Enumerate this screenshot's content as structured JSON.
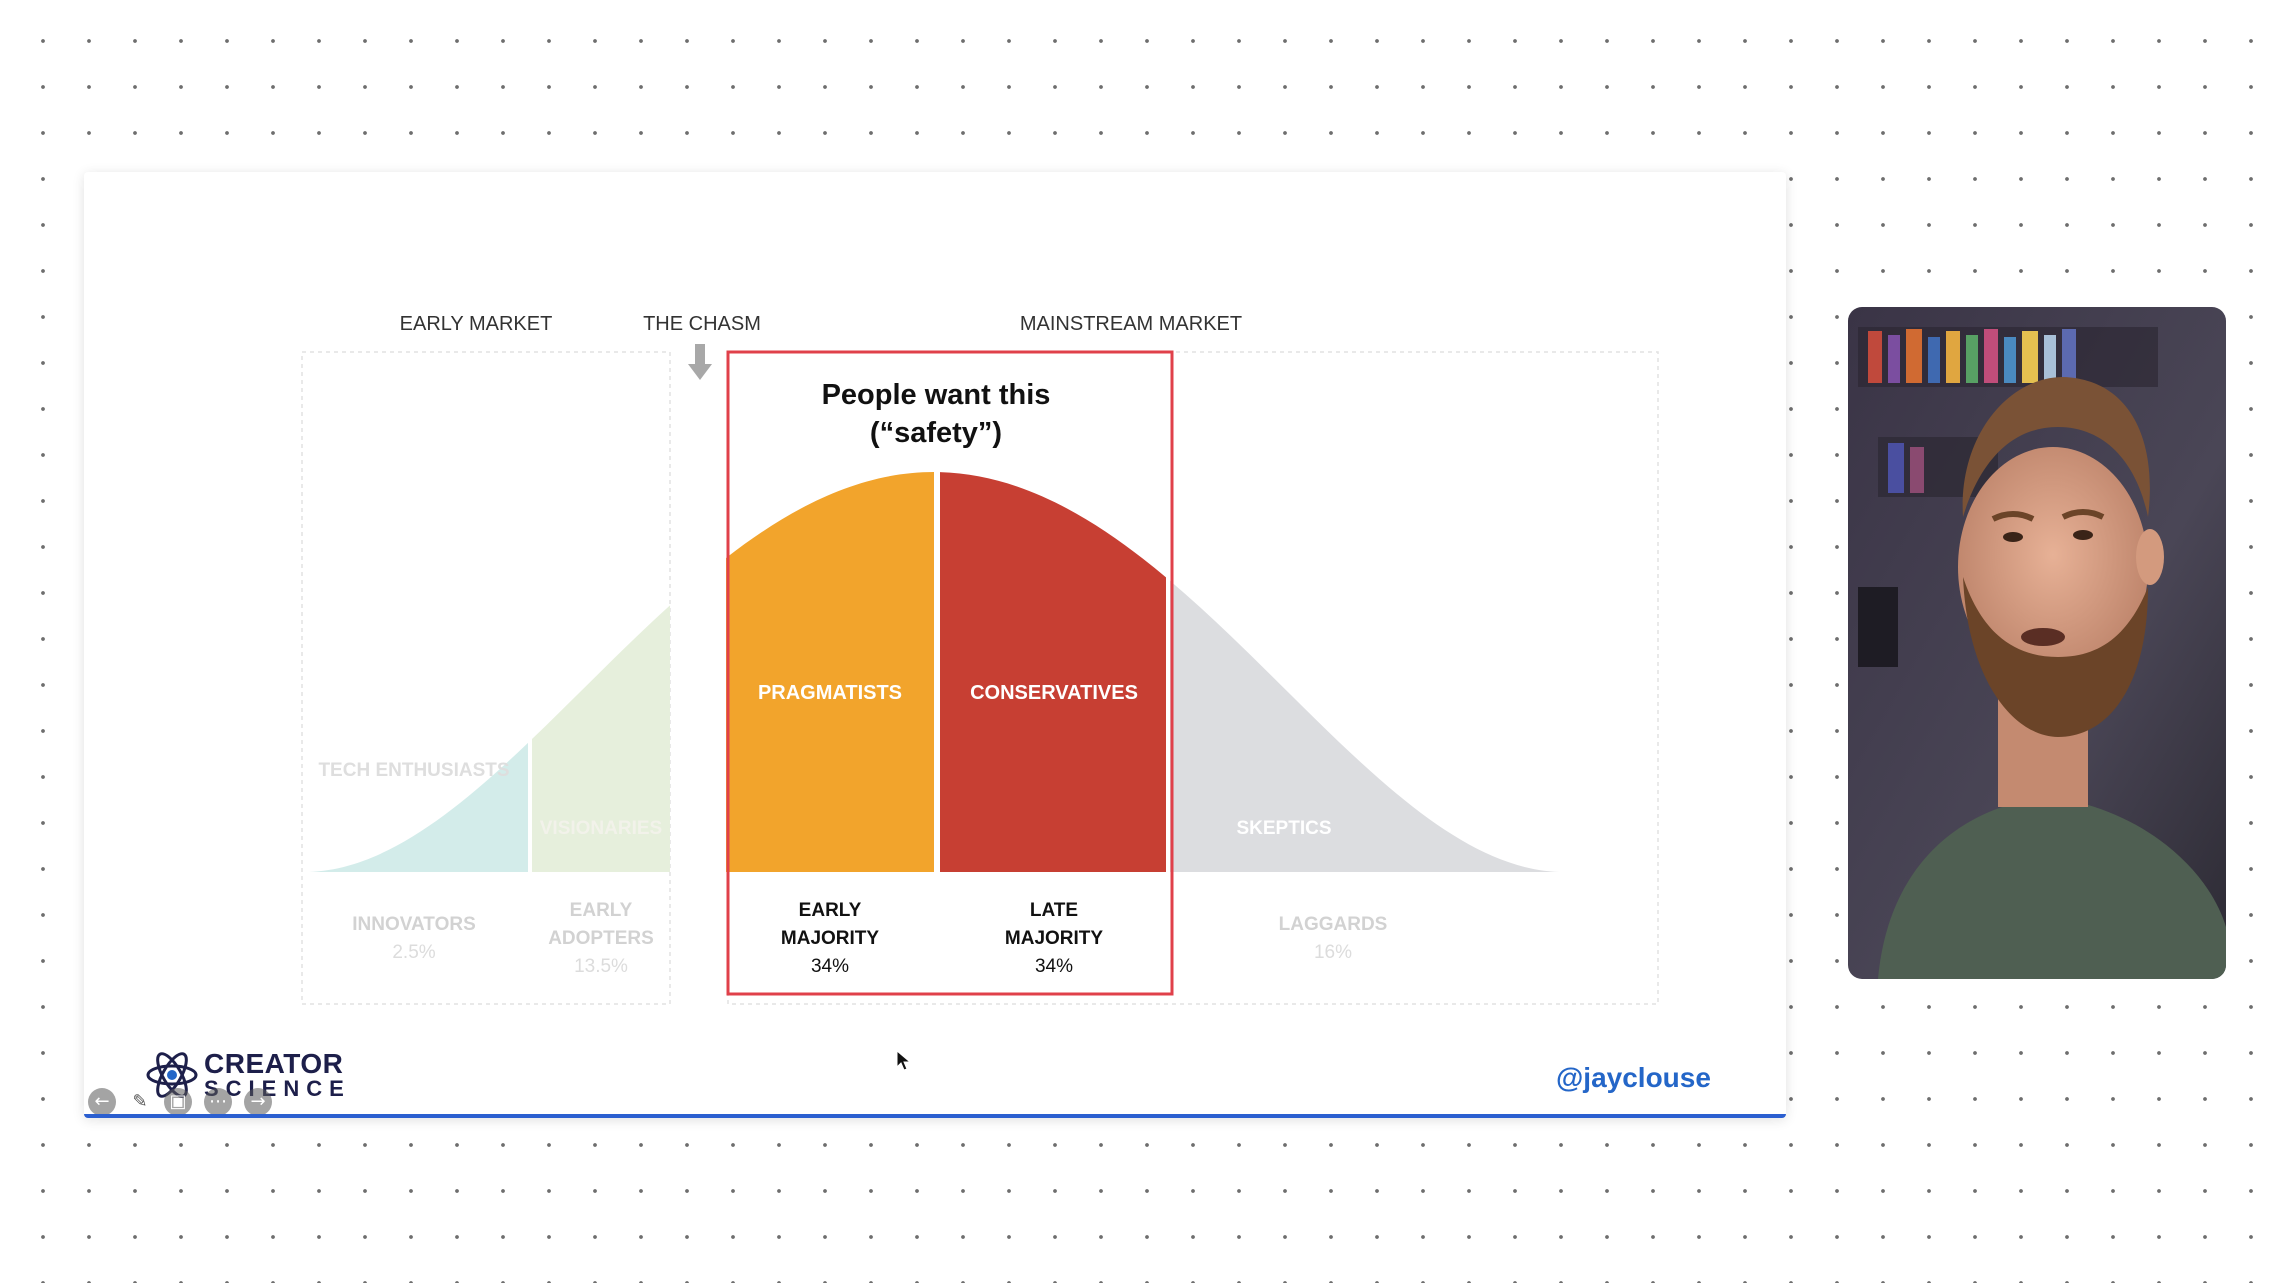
{
  "diagram": {
    "header_labels": {
      "early_market": "EARLY MARKET",
      "chasm": "THE CHASM",
      "mainstream_market": "MAINSTREAM MARKET"
    },
    "callout": {
      "line1": "People want this",
      "line2": "(“safety”)",
      "border_color": "#e0404a"
    },
    "segments": [
      {
        "curve_label": "TECH ENTHUSIASTS",
        "bottom_line1": "INNOVATORS",
        "bottom_line2": "",
        "percent": "2.5%",
        "color": "#d3ecea",
        "faded": true
      },
      {
        "curve_label": "VISIONARIES",
        "bottom_line1": "EARLY",
        "bottom_line2": "ADOPTERS",
        "percent": "13.5%",
        "color": "#e6efdc",
        "faded": true
      },
      {
        "curve_label": "PRAGMATISTS",
        "bottom_line1": "EARLY",
        "bottom_line2": "MAJORITY",
        "percent": "34%",
        "color": "#f2a42c",
        "faded": false
      },
      {
        "curve_label": "CONSERVATIVES",
        "bottom_line1": "LATE",
        "bottom_line2": "MAJORITY",
        "percent": "34%",
        "color": "#c73f33",
        "faded": false
      },
      {
        "curve_label": "SKEPTICS",
        "bottom_line1": "LAGGARDS",
        "bottom_line2": "",
        "percent": "16%",
        "color": "#dcdde0",
        "faded": true
      }
    ]
  },
  "branding": {
    "logo_top": "CREATOR",
    "logo_bottom": "SCIENCE",
    "handle": "@jayclouse"
  },
  "controls": {
    "icons": [
      "back-arrow-icon",
      "pen-icon",
      "slides-icon",
      "more-icon",
      "forward-arrow-icon"
    ]
  }
}
